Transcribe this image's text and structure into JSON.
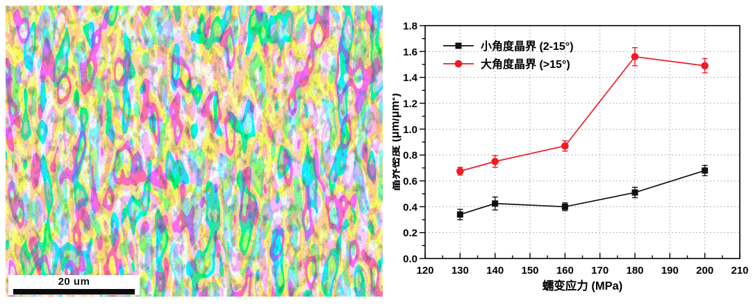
{
  "page": {
    "background": "#ffffff"
  },
  "figure": {
    "micrograph": {
      "content": "EBSD grain orientation map",
      "scale_bar_label": "20 um",
      "palette": [
        "#4f63e8",
        "#39b7e0",
        "#44e0b2",
        "#7ee06a",
        "#d8ee5a",
        "#f2e26a",
        "#f2984f",
        "#ee4f6a",
        "#ee4fd0",
        "#f08ac0",
        "#9a4fee",
        "#6a8cf2",
        "#eef2e8"
      ]
    },
    "chart_data": {
      "type": "line",
      "x": [
        130,
        140,
        160,
        180,
        200
      ],
      "series": [
        {
          "name": "小角度晶界 (2-15°)",
          "marker": "square",
          "color": "#111111",
          "values": [
            0.34,
            0.425,
            0.4,
            0.51,
            0.68
          ],
          "errors": [
            0.04,
            0.05,
            0.03,
            0.04,
            0.04
          ]
        },
        {
          "name": "大角度晶界 (>15°)",
          "marker": "circle",
          "color": "#ee1c25",
          "values": [
            0.675,
            0.75,
            0.87,
            1.56,
            1.49
          ],
          "errors": [
            0.03,
            0.045,
            0.04,
            0.07,
            0.055
          ]
        }
      ],
      "xlabel": "蠕变应力 (MPa)",
      "ylabel": "晶界密度 (μm/μm²)",
      "xlim": [
        120,
        210
      ],
      "xtick_step": 10,
      "xminor_step": 5,
      "ylim": [
        0.0,
        1.8
      ],
      "ytick_step": 0.2,
      "yminor_step": 0.1,
      "grid": true,
      "legend_position": "top-left"
    }
  }
}
